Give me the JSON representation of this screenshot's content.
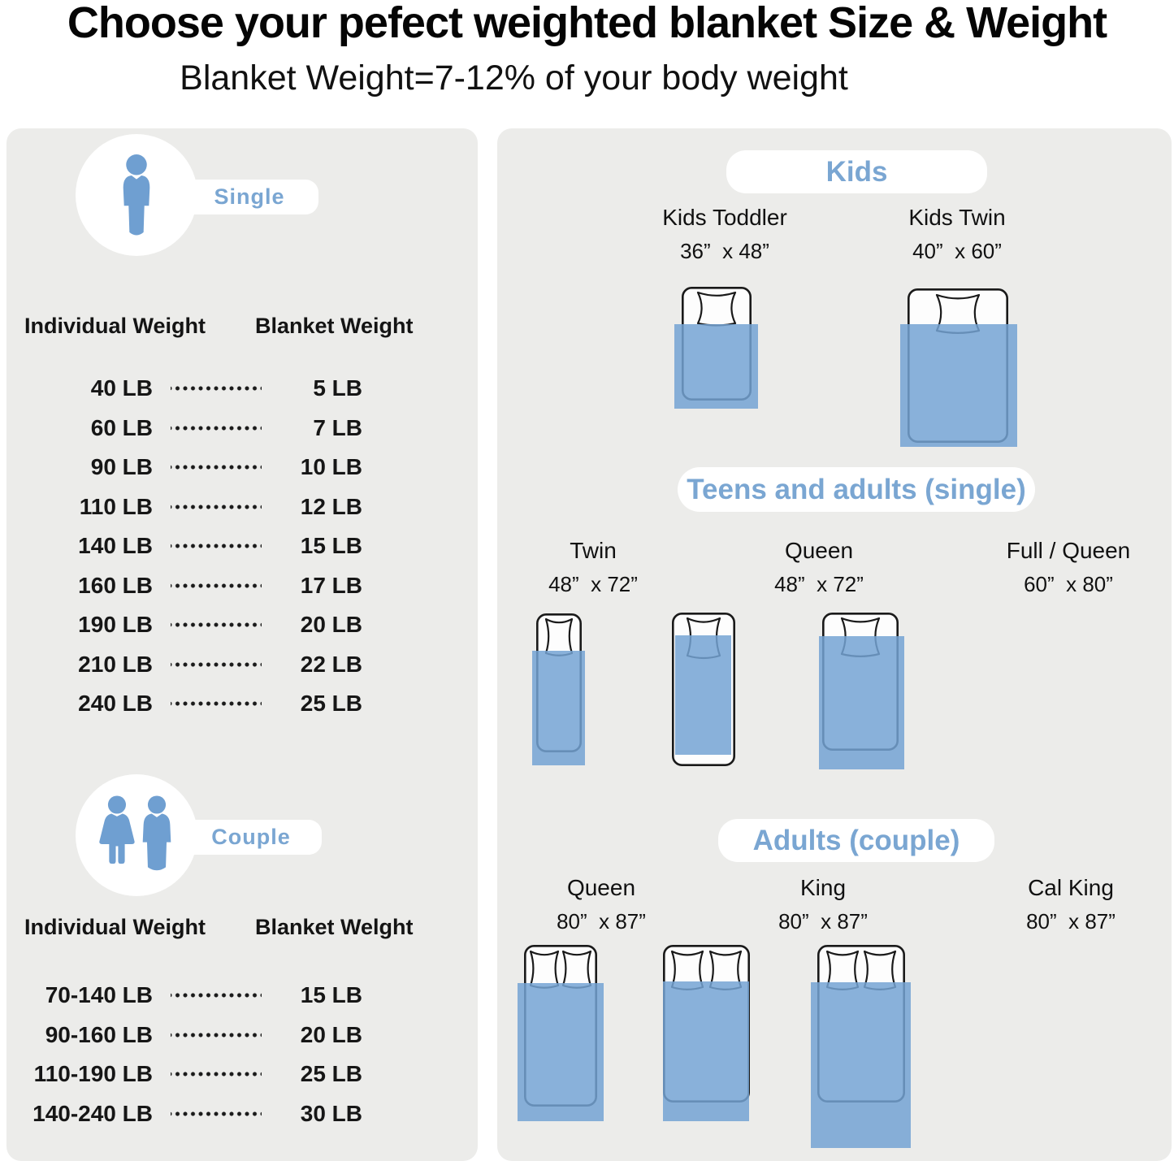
{
  "title": "Choose your pefect weighted blanket Size & Weight",
  "subtitle": "Blanket Weight=7-12% of your body weight",
  "colors": {
    "accent": "#7aa6d2",
    "icon_blue": "#6f9fd1",
    "blanket": "#74a3d4",
    "panel_bg": "#ececea"
  },
  "left_panel": {
    "single": {
      "label": "Single",
      "col1_header": "Individual Weight",
      "col2_header": "Blanket Weight",
      "rows": [
        {
          "individual": "40 LB",
          "blanket": "5 LB"
        },
        {
          "individual": "60 LB",
          "blanket": "7 LB"
        },
        {
          "individual": "90 LB",
          "blanket": "10 LB"
        },
        {
          "individual": "110 LB",
          "blanket": "12 LB"
        },
        {
          "individual": "140 LB",
          "blanket": "15 LB"
        },
        {
          "individual": "160 LB",
          "blanket": "17 LB"
        },
        {
          "individual": "190 LB",
          "blanket": "20 LB"
        },
        {
          "individual": "210 LB",
          "blanket": "22 LB"
        },
        {
          "individual": "240 LB",
          "blanket": "25 LB"
        }
      ]
    },
    "couple": {
      "label": "Couple",
      "col1_header": "Individual Weight",
      "col2_header": "Blanket Welght",
      "rows": [
        {
          "individual": "70-140 LB",
          "blanket": "15 LB"
        },
        {
          "individual": "90-160 LB",
          "blanket": "20 LB"
        },
        {
          "individual": "110-190 LB",
          "blanket": "25 LB"
        },
        {
          "individual": "140-240 LB",
          "blanket": "30 LB"
        }
      ]
    }
  },
  "right_panel": {
    "sections": [
      {
        "header": "Kids",
        "beds": [
          {
            "name": "Kids Toddler",
            "size": "36”  x 48”"
          },
          {
            "name": "Kids Twin",
            "size": "40”  x 60”"
          }
        ]
      },
      {
        "header": "Teens and adults (single)",
        "beds": [
          {
            "name": "Twin",
            "size": "48”  x 72”"
          },
          {
            "name": "Queen",
            "size": "48”  x 72”"
          },
          {
            "name": "Full / Queen",
            "size": "60”  x 80”"
          }
        ]
      },
      {
        "header": "Adults (couple)",
        "beds": [
          {
            "name": "Queen",
            "size": "80”  x 87”"
          },
          {
            "name": "King",
            "size": "80”  x 87”"
          },
          {
            "name": "Cal King",
            "size": "80”  x 87”"
          }
        ]
      }
    ]
  }
}
